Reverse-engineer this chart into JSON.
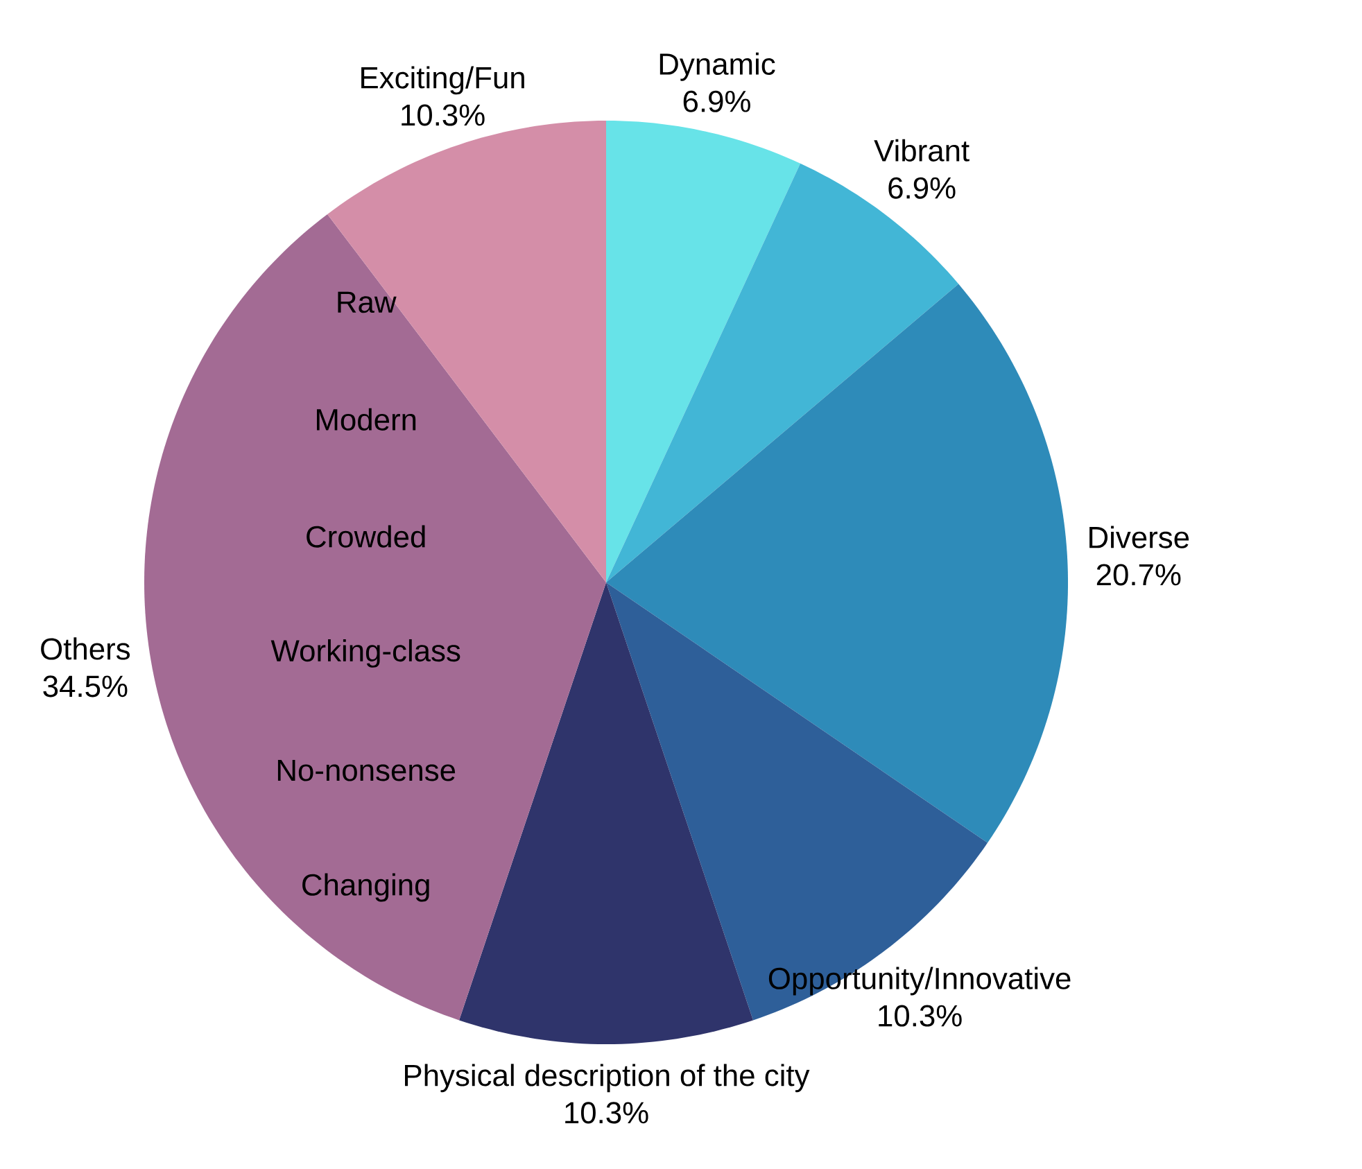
{
  "chart_data": {
    "type": "pie",
    "categories": [
      "Dynamic",
      "Vibrant",
      "Diverse",
      "Opportunity/Innovative",
      "Physical description of the city",
      "Others",
      "Exciting/Fun"
    ],
    "values": [
      6.9,
      6.9,
      20.7,
      10.3,
      10.3,
      34.5,
      10.3
    ],
    "value_labels": [
      "6.9%",
      "6.9%",
      "20.7%",
      "10.3%",
      "10.3%",
      "34.5%",
      "10.3%"
    ],
    "colors": [
      "#67e3e8",
      "#42b6d6",
      "#2e8bb9",
      "#2e5f99",
      "#2f346b",
      "#a36b94",
      "#d48ea8"
    ],
    "annotations": [
      "Raw",
      "Modern",
      "Crowded",
      "Working-class",
      "No-nonsense",
      "Changing"
    ]
  }
}
